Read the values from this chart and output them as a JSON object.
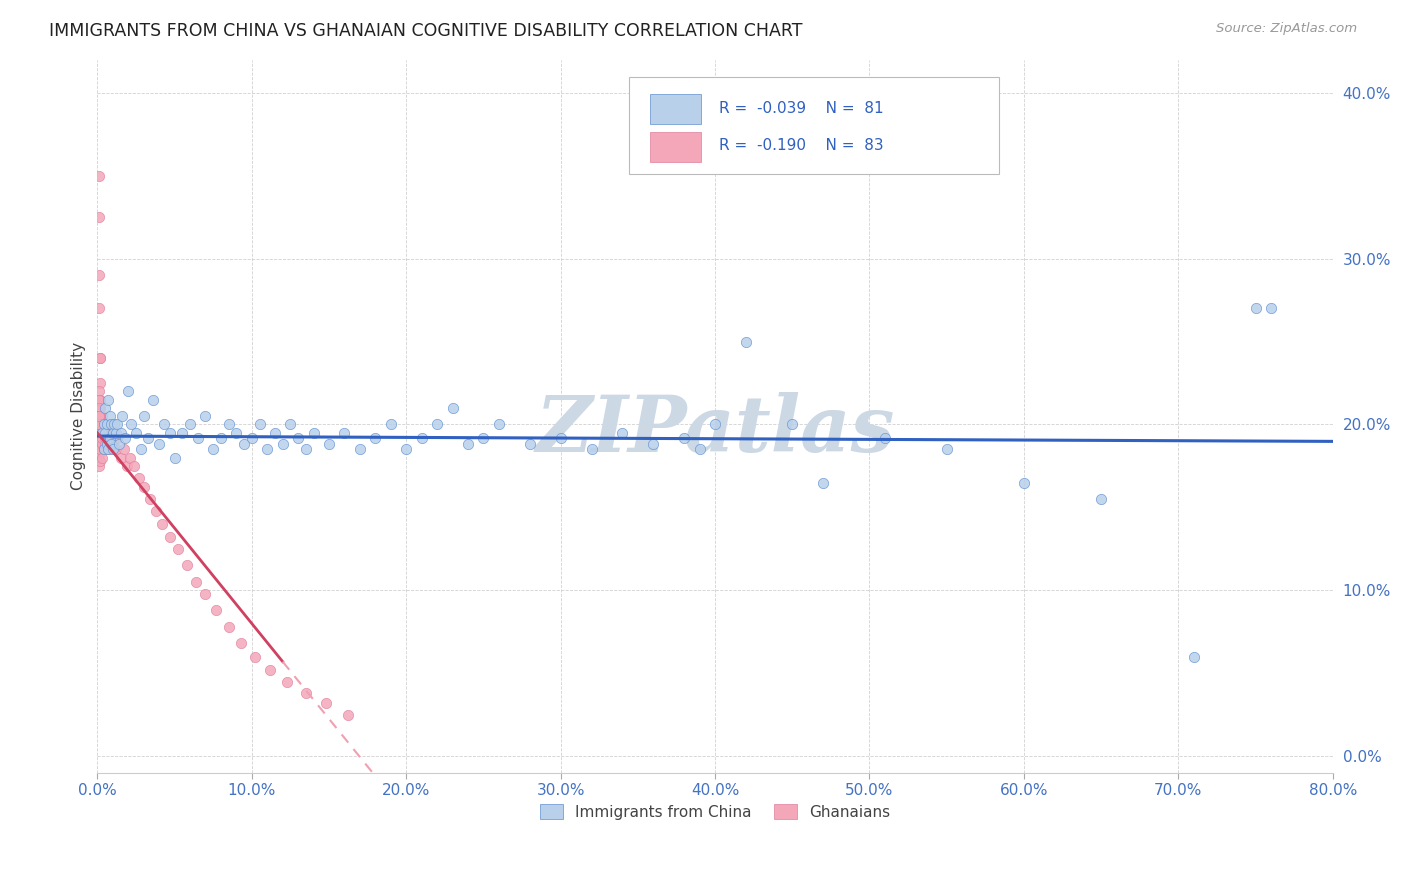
{
  "title": "IMMIGRANTS FROM CHINA VS GHANAIAN COGNITIVE DISABILITY CORRELATION CHART",
  "source": "Source: ZipAtlas.com",
  "ylabel": "Cognitive Disability",
  "xlim": [
    0.0,
    0.8
  ],
  "ylim": [
    -0.01,
    0.42
  ],
  "yticks": [
    0.0,
    0.1,
    0.2,
    0.3,
    0.4
  ],
  "xticks": [
    0.0,
    0.1,
    0.2,
    0.3,
    0.4,
    0.5,
    0.6,
    0.7,
    0.8
  ],
  "color_china": "#b8d0ea",
  "color_ghana": "#f4a7b9",
  "color_china_line": "#3060C0",
  "color_ghana_line_solid": "#d04060",
  "color_ghana_line_dash": "#f0a0b0",
  "color_watermark": "#d0dce8",
  "legend_R_china": "-0.039",
  "legend_N_china": "81",
  "legend_R_ghana": "-0.190",
  "legend_N_ghana": "83",
  "china_x": [
    0.003,
    0.004,
    0.004,
    0.005,
    0.005,
    0.006,
    0.006,
    0.007,
    0.007,
    0.008,
    0.008,
    0.009,
    0.009,
    0.01,
    0.01,
    0.011,
    0.012,
    0.013,
    0.014,
    0.015,
    0.016,
    0.018,
    0.02,
    0.022,
    0.025,
    0.028,
    0.03,
    0.033,
    0.036,
    0.04,
    0.043,
    0.047,
    0.05,
    0.055,
    0.06,
    0.065,
    0.07,
    0.075,
    0.08,
    0.085,
    0.09,
    0.095,
    0.1,
    0.105,
    0.11,
    0.115,
    0.12,
    0.125,
    0.13,
    0.135,
    0.14,
    0.15,
    0.16,
    0.17,
    0.18,
    0.19,
    0.2,
    0.21,
    0.22,
    0.23,
    0.24,
    0.25,
    0.26,
    0.28,
    0.3,
    0.32,
    0.34,
    0.36,
    0.38,
    0.4,
    0.42,
    0.45,
    0.47,
    0.51,
    0.55,
    0.6,
    0.65,
    0.71,
    0.75,
    0.39,
    0.76
  ],
  "china_y": [
    0.195,
    0.2,
    0.185,
    0.195,
    0.21,
    0.188,
    0.2,
    0.185,
    0.215,
    0.192,
    0.205,
    0.188,
    0.2,
    0.195,
    0.185,
    0.2,
    0.195,
    0.2,
    0.188,
    0.195,
    0.205,
    0.192,
    0.22,
    0.2,
    0.195,
    0.185,
    0.205,
    0.192,
    0.215,
    0.188,
    0.2,
    0.195,
    0.18,
    0.195,
    0.2,
    0.192,
    0.205,
    0.185,
    0.192,
    0.2,
    0.195,
    0.188,
    0.192,
    0.2,
    0.185,
    0.195,
    0.188,
    0.2,
    0.192,
    0.185,
    0.195,
    0.188,
    0.195,
    0.185,
    0.192,
    0.2,
    0.185,
    0.192,
    0.2,
    0.21,
    0.188,
    0.192,
    0.2,
    0.188,
    0.192,
    0.185,
    0.195,
    0.188,
    0.192,
    0.2,
    0.25,
    0.2,
    0.165,
    0.192,
    0.185,
    0.165,
    0.155,
    0.06,
    0.27,
    0.185,
    0.27
  ],
  "ghana_x": [
    0.001,
    0.001,
    0.001,
    0.001,
    0.001,
    0.001,
    0.001,
    0.001,
    0.001,
    0.001,
    0.002,
    0.002,
    0.002,
    0.002,
    0.002,
    0.002,
    0.002,
    0.002,
    0.003,
    0.003,
    0.003,
    0.003,
    0.003,
    0.003,
    0.004,
    0.004,
    0.004,
    0.005,
    0.005,
    0.005,
    0.006,
    0.006,
    0.007,
    0.007,
    0.008,
    0.008,
    0.009,
    0.01,
    0.011,
    0.012,
    0.013,
    0.015,
    0.017,
    0.019,
    0.021,
    0.024,
    0.027,
    0.03,
    0.034,
    0.038,
    0.042,
    0.047,
    0.052,
    0.058,
    0.064,
    0.07,
    0.077,
    0.085,
    0.093,
    0.102,
    0.112,
    0.123,
    0.135,
    0.148,
    0.162,
    0.001,
    0.001,
    0.002,
    0.002,
    0.002,
    0.001,
    0.001,
    0.002,
    0.001,
    0.001,
    0.001,
    0.001,
    0.001,
    0.001,
    0.001,
    0.001,
    0.001,
    0.001
  ],
  "ghana_y": [
    0.19,
    0.195,
    0.2,
    0.185,
    0.205,
    0.192,
    0.188,
    0.175,
    0.182,
    0.2,
    0.195,
    0.185,
    0.2,
    0.19,
    0.21,
    0.178,
    0.195,
    0.2,
    0.195,
    0.188,
    0.2,
    0.18,
    0.192,
    0.205,
    0.185,
    0.2,
    0.195,
    0.188,
    0.2,
    0.192,
    0.185,
    0.2,
    0.188,
    0.2,
    0.192,
    0.185,
    0.195,
    0.188,
    0.195,
    0.185,
    0.192,
    0.18,
    0.185,
    0.175,
    0.18,
    0.175,
    0.168,
    0.162,
    0.155,
    0.148,
    0.14,
    0.132,
    0.125,
    0.115,
    0.105,
    0.098,
    0.088,
    0.078,
    0.068,
    0.06,
    0.052,
    0.045,
    0.038,
    0.032,
    0.025,
    0.35,
    0.29,
    0.24,
    0.225,
    0.215,
    0.27,
    0.325,
    0.24,
    0.22,
    0.215,
    0.215,
    0.21,
    0.205,
    0.205,
    0.2,
    0.205,
    0.2,
    0.205
  ]
}
